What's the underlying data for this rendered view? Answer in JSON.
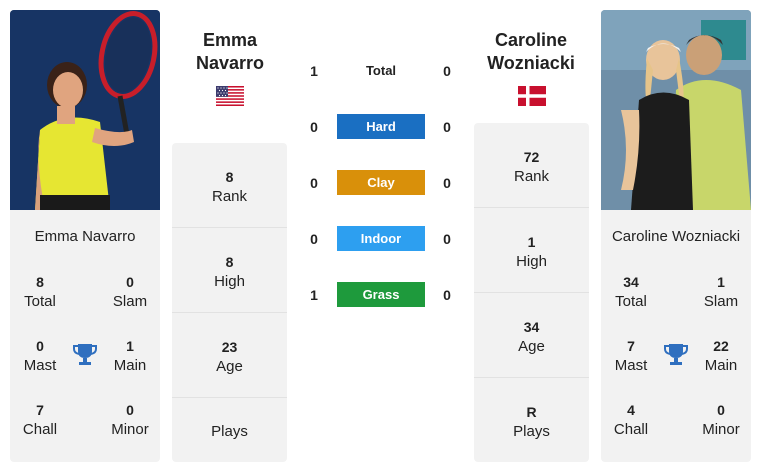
{
  "player1": {
    "card_name": "Emma Navarro",
    "header_name_line1": "Emma",
    "header_name_line2": "Navarro",
    "flag": "us-flag",
    "stats": {
      "total": {
        "value": "8",
        "label": "Total"
      },
      "slam": {
        "value": "0",
        "label": "Slam"
      },
      "mast": {
        "value": "0",
        "label": "Mast"
      },
      "main": {
        "value": "1",
        "label": "Main"
      },
      "chall": {
        "value": "7",
        "label": "Chall"
      },
      "minor": {
        "value": "0",
        "label": "Minor"
      }
    },
    "column": {
      "rank": {
        "value": "8",
        "label": "Rank"
      },
      "high": {
        "value": "8",
        "label": "High"
      },
      "age": {
        "value": "23",
        "label": "Age"
      },
      "plays": {
        "value": "",
        "label": "Plays"
      }
    }
  },
  "player2": {
    "card_name": "Caroline Wozniacki",
    "header_name_line1": "Caroline",
    "header_name_line2": "Wozniacki",
    "flag": "denmark-flag",
    "stats": {
      "total": {
        "value": "34",
        "label": "Total"
      },
      "slam": {
        "value": "1",
        "label": "Slam"
      },
      "mast": {
        "value": "7",
        "label": "Mast"
      },
      "main": {
        "value": "22",
        "label": "Main"
      },
      "chall": {
        "value": "4",
        "label": "Chall"
      },
      "minor": {
        "value": "0",
        "label": "Minor"
      }
    },
    "column": {
      "rank": {
        "value": "72",
        "label": "Rank"
      },
      "high": {
        "value": "1",
        "label": "High"
      },
      "age": {
        "value": "34",
        "label": "Age"
      },
      "plays": {
        "value": "R",
        "label": "Plays"
      }
    }
  },
  "h2h": {
    "total": {
      "label": "Total",
      "p1": "1",
      "p2": "0"
    },
    "surfaces": [
      {
        "label": "Hard",
        "p1": "0",
        "p2": "0",
        "color": "#1a6fc2"
      },
      {
        "label": "Clay",
        "p1": "0",
        "p2": "0",
        "color": "#d9900a"
      },
      {
        "label": "Indoor",
        "p1": "0",
        "p2": "0",
        "color": "#2d9ff0"
      },
      {
        "label": "Grass",
        "p1": "1",
        "p2": "0",
        "color": "#1e9a3c"
      }
    ]
  },
  "icons": {
    "trophy": "trophy-icon",
    "trophy_color": "#2f6fbf"
  }
}
